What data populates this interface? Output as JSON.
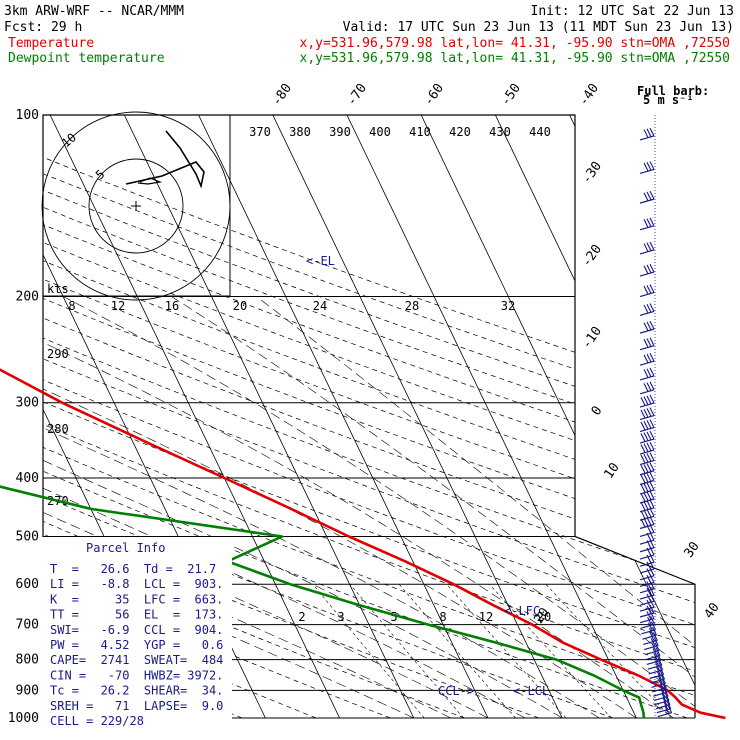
{
  "header": {
    "line1_left": "3km ARW-WRF -- NCAR/MMM",
    "line1_right": "Init: 12 UTC Sat 22 Jun 13",
    "line2_left": "Fcst:    29 h",
    "line2_right": "Valid: 17 UTC Sun 23 Jun 13 (11 MDT Sun 23 Jun 13)",
    "line3_label": "Temperature",
    "line3_info": "x,y=531.96,579.98   lat,lon= 41.31, -95.90   stn=OMA ,72550",
    "line4_label": "Dewpoint temperature",
    "line4_info": "x,y=531.96,579.98   lat,lon= 41.31, -95.90   stn=OMA ,72550"
  },
  "colors": {
    "temperature": "#e00000",
    "dewpoint": "#008000",
    "annotation": "#1a1a8a",
    "grid": "#000000"
  },
  "chart_data": {
    "type": "line",
    "title": "",
    "xlabel": "",
    "ylabel": "",
    "y_scale": "log-pressure",
    "ylim": [
      1000,
      100
    ],
    "pressure_ticks": [
      "100",
      "200",
      "300",
      "400",
      "500",
      "600",
      "700",
      "800",
      "900",
      "1000"
    ],
    "isotherm_labels": [
      "-80",
      "-70",
      "-60",
      "-50",
      "-40",
      "-30",
      "-20",
      "-10",
      "0",
      "10",
      "20",
      "30",
      "40"
    ],
    "theta_labels": [
      "370",
      "380",
      "390",
      "400",
      "410",
      "420",
      "430",
      "440"
    ],
    "mixing_ratio_labels": [
      "2",
      "3",
      "5",
      "8",
      "12",
      "20"
    ],
    "theta_low_labels": [
      "290",
      "280",
      "270"
    ],
    "series": [
      {
        "name": "Temperature",
        "color": "#e00000",
        "pressure": [
          1000,
          980,
          950,
          925,
          900,
          850,
          800,
          750,
          700,
          650,
          600,
          550,
          500,
          450,
          400,
          350,
          300,
          250,
          220,
          200,
          180,
          160,
          140,
          120,
          110,
          100
        ],
        "temperature_c": [
          32,
          29,
          27,
          26.6,
          26,
          23,
          19,
          15,
          12,
          8,
          4,
          -1,
          -7,
          -13,
          -20,
          -28,
          -37,
          -46,
          -52,
          -56,
          -60,
          -60,
          -58,
          -56,
          -55,
          -54
        ]
      },
      {
        "name": "Dewpoint temperature",
        "color": "#008000",
        "pressure": [
          1000,
          980,
          950,
          925,
          900,
          850,
          800,
          750,
          700,
          650,
          600,
          550,
          500,
          450,
          400,
          350,
          300,
          250,
          220,
          200,
          180,
          160,
          140,
          120,
          110,
          100
        ],
        "temperature_c": [
          21,
          21.3,
          21.5,
          21.7,
          20,
          17,
          13,
          6,
          -2,
          -10,
          -18,
          -25,
          -16,
          -40,
          -55,
          -62,
          -68,
          -78,
          -80,
          -79,
          -82,
          -85,
          -88,
          -90,
          -91,
          -92
        ]
      }
    ]
  },
  "annotations": {
    "el": "<-EL",
    "lfc": "<-LFC",
    "lcl": "<-LCL",
    "ccl": "CCL->"
  },
  "hodograph": {
    "unit_label": "kts",
    "ring_labels": [
      "5",
      "10"
    ],
    "speed_labels": [
      "8",
      "12",
      "16",
      "20",
      "24",
      "28",
      "32"
    ]
  },
  "wind_legend": {
    "line1": "Full barb:",
    "line2": "5 m s⁻¹"
  },
  "parcel_info": {
    "title": "Parcel Info",
    "rows": [
      "T  =   26.6  Td =  21.7",
      "LI =   -8.8  LCL =  903.",
      "K  =     35  LFC =  663.",
      "TT =     56  EL  =  173.",
      "SWI=   -6.9  CCL =  904.",
      "PW =   4.52  YGP =   0.6",
      "CAPE=  2741  SWEAT=  484",
      "CIN =   -70  HWBZ= 3972.",
      "Tc =   26.2  SHEAR=  34.",
      "SREH =   71  LAPSE=  9.0",
      "CELL = 229/28"
    ]
  }
}
